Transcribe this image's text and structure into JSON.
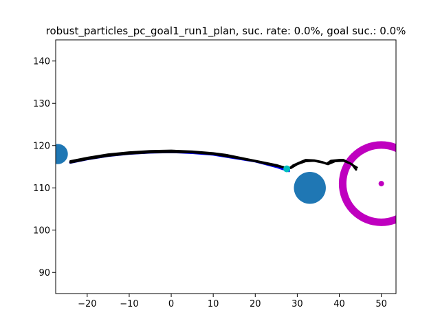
{
  "chart_data": {
    "type": "scatter",
    "title": "robust_particles_pc_goal1_run1_plan, suc. rate: 0.0%, goal suc.: 0.0%",
    "xlabel": "",
    "ylabel": "",
    "xlim": [
      -27.5,
      53.5
    ],
    "ylim": [
      85,
      145
    ],
    "xticks": [
      -20,
      -10,
      0,
      10,
      20,
      30,
      40,
      50
    ],
    "yticks": [
      90,
      100,
      110,
      120,
      130,
      140
    ],
    "grid": false,
    "colors": {
      "obstacle": "#1f77b4",
      "goal": "#bf00bf",
      "planned_path": "#0000ff",
      "particle_path": "#000000",
      "marker": "#00bfbf"
    },
    "obstacles": [
      {
        "x": -27,
        "y": 118,
        "r": 2.4
      },
      {
        "x": 33,
        "y": 110,
        "r": 3.8
      }
    ],
    "goal_region": {
      "x": 50,
      "y": 111,
      "r": 9.2
    },
    "goal_point": {
      "x": 50,
      "y": 111
    },
    "current_marker": {
      "x": 27.5,
      "y": 114.5
    },
    "planned_path": [
      [
        -24,
        116
      ],
      [
        -20,
        116.8
      ],
      [
        -15,
        117.6
      ],
      [
        -10,
        118.1
      ],
      [
        -5,
        118.4
      ],
      [
        0,
        118.5
      ],
      [
        5,
        118.3
      ],
      [
        10,
        117.9
      ],
      [
        15,
        117.1
      ],
      [
        20,
        116.3
      ],
      [
        25,
        115
      ],
      [
        28,
        114
      ]
    ],
    "particle_paths": [
      [
        [
          -24,
          116.3
        ],
        [
          -20,
          117.1
        ],
        [
          -15,
          117.9
        ],
        [
          -10,
          118.4
        ],
        [
          -5,
          118.7
        ],
        [
          0,
          118.8
        ],
        [
          5,
          118.6
        ],
        [
          10,
          118.2
        ],
        [
          13,
          117.8
        ],
        [
          18,
          116.8
        ],
        [
          22,
          116
        ],
        [
          25,
          115.4
        ],
        [
          28,
          114.5
        ],
        [
          29,
          115.3
        ],
        [
          31,
          116.2
        ],
        [
          32,
          116.6
        ],
        [
          34,
          116.5
        ],
        [
          36,
          116.1
        ],
        [
          37,
          115.7
        ],
        [
          38,
          116.4
        ],
        [
          40,
          116.6
        ],
        [
          41,
          116.6
        ],
        [
          43,
          115.6
        ],
        [
          44,
          114.3
        ]
      ],
      [
        [
          -24,
          116.0
        ],
        [
          -20,
          116.8
        ],
        [
          -15,
          117.6
        ],
        [
          -10,
          118.1
        ],
        [
          -5,
          118.4
        ],
        [
          0,
          118.5
        ],
        [
          5,
          118.4
        ],
        [
          10,
          118.0
        ],
        [
          15,
          117.2
        ],
        [
          20,
          116.3
        ],
        [
          24,
          115.4
        ],
        [
          27,
          114.8
        ],
        [
          28.5,
          114.7
        ],
        [
          30,
          115.6
        ],
        [
          32,
          116.3
        ],
        [
          34,
          116.4
        ],
        [
          36,
          116.0
        ],
        [
          37.3,
          115.6
        ],
        [
          39,
          116.3
        ],
        [
          41,
          116.4
        ],
        [
          42.5,
          115.8
        ],
        [
          44.2,
          114.8
        ]
      ]
    ]
  }
}
